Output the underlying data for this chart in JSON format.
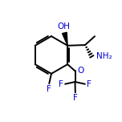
{
  "bg_color": "#ffffff",
  "line_color": "#000000",
  "label_color": "#0000cd",
  "bond_width": 1.4,
  "figure_size": [
    1.52,
    1.52
  ],
  "dpi": 100,
  "atoms": {
    "OH_label": "OH",
    "NH2_label": "NH₂",
    "O_label": "O",
    "F_label": "F",
    "CF3_F_labels": [
      "F",
      "F",
      "F"
    ]
  }
}
